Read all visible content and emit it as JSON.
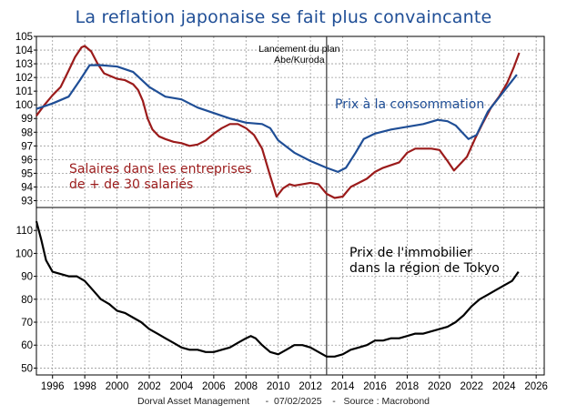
{
  "title": "La reflation japonaise se fait plus convaincante",
  "footer": "Dorval Asset Management      -  07/02/2025    -   Source : Macrobond",
  "colors": {
    "cpi": "#1f4e96",
    "wages": "#9b1b1b",
    "realestate": "#000000",
    "event_line": "#333333"
  },
  "chart_data": [
    {
      "type": "line",
      "ylim": [
        92.5,
        105
      ],
      "yticks": [
        93,
        94,
        95,
        96,
        97,
        98,
        99,
        100,
        101,
        102,
        103,
        104,
        105
      ],
      "grid": true,
      "annotation": {
        "x": 2013.0,
        "lines": [
          "Lancement du plan",
          "Abe/Kuroda"
        ]
      },
      "series": [
        {
          "name": "Prix à la consommation",
          "label_lines": [
            "Prix à la consommation"
          ],
          "color_key": "cpi",
          "points": [
            [
              1995.0,
              99.7
            ],
            [
              1996.0,
              100.1
            ],
            [
              1997.0,
              100.6
            ],
            [
              1997.7,
              101.8
            ],
            [
              1998.3,
              102.9
            ],
            [
              1999.0,
              102.9
            ],
            [
              2000.0,
              102.8
            ],
            [
              2001.0,
              102.4
            ],
            [
              2002.0,
              101.3
            ],
            [
              2003.0,
              100.6
            ],
            [
              2004.0,
              100.4
            ],
            [
              2005.0,
              99.8
            ],
            [
              2006.0,
              99.4
            ],
            [
              2007.0,
              99.0
            ],
            [
              2008.0,
              98.7
            ],
            [
              2009.0,
              98.6
            ],
            [
              2009.5,
              98.3
            ],
            [
              2010.0,
              97.4
            ],
            [
              2011.0,
              96.5
            ],
            [
              2012.0,
              95.9
            ],
            [
              2013.0,
              95.4
            ],
            [
              2013.7,
              95.1
            ],
            [
              2014.2,
              95.4
            ],
            [
              2014.8,
              96.5
            ],
            [
              2015.3,
              97.5
            ],
            [
              2016.0,
              97.9
            ],
            [
              2017.0,
              98.2
            ],
            [
              2018.0,
              98.4
            ],
            [
              2019.0,
              98.6
            ],
            [
              2019.9,
              98.9
            ],
            [
              2020.5,
              98.8
            ],
            [
              2021.0,
              98.5
            ],
            [
              2021.8,
              97.5
            ],
            [
              2022.3,
              97.8
            ],
            [
              2023.0,
              99.5
            ],
            [
              2024.0,
              101.0
            ],
            [
              2024.8,
              102.2
            ]
          ]
        },
        {
          "name": "Salaires dans les entreprises de + de 30 salariés",
          "label_lines": [
            "Salaires dans les entreprises",
            "de + de 30 salariés"
          ],
          "color_key": "wages",
          "points": [
            [
              1995.0,
              99.2
            ],
            [
              1995.5,
              100.0
            ],
            [
              1996.0,
              100.7
            ],
            [
              1996.5,
              101.3
            ],
            [
              1997.0,
              102.5
            ],
            [
              1997.4,
              103.5
            ],
            [
              1997.8,
              104.2
            ],
            [
              1998.0,
              104.3
            ],
            [
              1998.4,
              103.9
            ],
            [
              1998.8,
              103.0
            ],
            [
              1999.2,
              102.3
            ],
            [
              1999.6,
              102.1
            ],
            [
              2000.0,
              101.9
            ],
            [
              2000.5,
              101.8
            ],
            [
              2001.0,
              101.5
            ],
            [
              2001.3,
              101.1
            ],
            [
              2001.6,
              100.3
            ],
            [
              2001.9,
              99.0
            ],
            [
              2002.2,
              98.2
            ],
            [
              2002.6,
              97.7
            ],
            [
              2003.0,
              97.5
            ],
            [
              2003.5,
              97.3
            ],
            [
              2004.0,
              97.2
            ],
            [
              2004.5,
              97.0
            ],
            [
              2005.0,
              97.1
            ],
            [
              2005.5,
              97.4
            ],
            [
              2006.0,
              97.9
            ],
            [
              2006.5,
              98.3
            ],
            [
              2007.0,
              98.6
            ],
            [
              2007.5,
              98.6
            ],
            [
              2008.0,
              98.3
            ],
            [
              2008.5,
              97.8
            ],
            [
              2009.0,
              96.8
            ],
            [
              2009.5,
              94.8
            ],
            [
              2009.9,
              93.3
            ],
            [
              2010.3,
              93.9
            ],
            [
              2010.7,
              94.2
            ],
            [
              2011.0,
              94.1
            ],
            [
              2011.5,
              94.2
            ],
            [
              2012.0,
              94.3
            ],
            [
              2012.5,
              94.2
            ],
            [
              2013.0,
              93.5
            ],
            [
              2013.5,
              93.2
            ],
            [
              2014.0,
              93.3
            ],
            [
              2014.5,
              94.0
            ],
            [
              2015.0,
              94.3
            ],
            [
              2015.5,
              94.6
            ],
            [
              2016.0,
              95.1
            ],
            [
              2016.5,
              95.4
            ],
            [
              2017.0,
              95.6
            ],
            [
              2017.5,
              95.8
            ],
            [
              2018.0,
              96.5
            ],
            [
              2018.5,
              96.8
            ],
            [
              2019.0,
              96.8
            ],
            [
              2019.5,
              96.8
            ],
            [
              2020.0,
              96.7
            ],
            [
              2020.5,
              95.9
            ],
            [
              2020.9,
              95.2
            ],
            [
              2021.3,
              95.7
            ],
            [
              2021.7,
              96.2
            ],
            [
              2022.2,
              97.5
            ],
            [
              2022.7,
              98.7
            ],
            [
              2023.2,
              99.8
            ],
            [
              2023.7,
              100.6
            ],
            [
              2024.2,
              101.6
            ],
            [
              2024.6,
              102.7
            ],
            [
              2024.95,
              103.8
            ]
          ]
        }
      ]
    },
    {
      "type": "line",
      "ylim": [
        47,
        120
      ],
      "yticks": [
        50,
        60,
        70,
        80,
        90,
        100,
        110
      ],
      "grid": true,
      "xlim": [
        1995,
        2026.5
      ],
      "xticks": [
        1996,
        1998,
        2000,
        2002,
        2004,
        2006,
        2008,
        2010,
        2012,
        2014,
        2016,
        2018,
        2020,
        2022,
        2024,
        2026
      ],
      "annotation": {
        "x": 2013.0
      },
      "series": [
        {
          "name": "Prix de l'immobilier dans la région de Tokyo",
          "label_lines": [
            "Prix de l'immobilier",
            "dans la région de Tokyo"
          ],
          "color_key": "realestate",
          "points": [
            [
              1995.0,
              114
            ],
            [
              1995.3,
              106
            ],
            [
              1995.6,
              97
            ],
            [
              1996.0,
              92
            ],
            [
              1996.5,
              91
            ],
            [
              1997.0,
              90
            ],
            [
              1997.5,
              90
            ],
            [
              1998.0,
              88
            ],
            [
              1998.5,
              84
            ],
            [
              1999.0,
              80
            ],
            [
              1999.5,
              78
            ],
            [
              2000.0,
              75
            ],
            [
              2000.5,
              74
            ],
            [
              2001.0,
              72
            ],
            [
              2001.5,
              70
            ],
            [
              2002.0,
              67
            ],
            [
              2002.5,
              65
            ],
            [
              2003.0,
              63
            ],
            [
              2003.5,
              61
            ],
            [
              2004.0,
              59
            ],
            [
              2004.5,
              58
            ],
            [
              2005.0,
              58
            ],
            [
              2005.5,
              57
            ],
            [
              2006.0,
              57
            ],
            [
              2006.5,
              58
            ],
            [
              2007.0,
              59
            ],
            [
              2007.5,
              61
            ],
            [
              2008.0,
              63
            ],
            [
              2008.3,
              64
            ],
            [
              2008.6,
              63
            ],
            [
              2009.0,
              60
            ],
            [
              2009.5,
              57
            ],
            [
              2010.0,
              56
            ],
            [
              2010.5,
              58
            ],
            [
              2011.0,
              60
            ],
            [
              2011.5,
              60
            ],
            [
              2012.0,
              59
            ],
            [
              2012.5,
              57
            ],
            [
              2013.0,
              55
            ],
            [
              2013.5,
              55
            ],
            [
              2014.0,
              56
            ],
            [
              2014.5,
              58
            ],
            [
              2015.0,
              59
            ],
            [
              2015.5,
              60
            ],
            [
              2016.0,
              62
            ],
            [
              2016.5,
              62
            ],
            [
              2017.0,
              63
            ],
            [
              2017.5,
              63
            ],
            [
              2018.0,
              64
            ],
            [
              2018.5,
              65
            ],
            [
              2019.0,
              65
            ],
            [
              2019.5,
              66
            ],
            [
              2020.0,
              67
            ],
            [
              2020.5,
              68
            ],
            [
              2021.0,
              70
            ],
            [
              2021.5,
              73
            ],
            [
              2022.0,
              77
            ],
            [
              2022.5,
              80
            ],
            [
              2023.0,
              82
            ],
            [
              2023.5,
              84
            ],
            [
              2024.0,
              86
            ],
            [
              2024.5,
              88
            ],
            [
              2024.9,
              92
            ]
          ]
        }
      ]
    }
  ]
}
